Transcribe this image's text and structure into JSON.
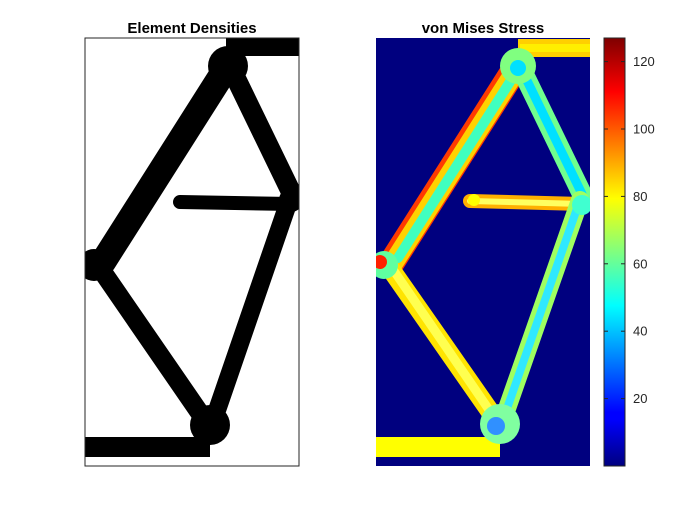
{
  "chart_data": [
    {
      "type": "heatmap",
      "title": "Element Densities",
      "colormap": "gray (inverted: black = solid, white = void)",
      "value_range": [
        0,
        1
      ],
      "structure": "topology-optimized truss: bottom support bar, top load bar, triangular upper cell with horizontal cross member, left node at mid-height, diagonal members to bottom node",
      "solid_color": "#000000",
      "void_color": "#ffffff"
    },
    {
      "type": "heatmap",
      "title": "von Mises Stress",
      "colormap": "jet",
      "colorbar": {
        "ticks": [
          20,
          40,
          60,
          80,
          100,
          120
        ],
        "tick_labels": [
          "20",
          "40",
          "60",
          "80",
          "100",
          "120"
        ],
        "range": [
          0,
          127
        ]
      },
      "background_value": 0,
      "notes": "members mostly ~55-85 (cyan-yellow), peak ~120 (red) along upper-left diagonal edge, top-right load bar ~80-90, bottom bar ~80"
    }
  ]
}
